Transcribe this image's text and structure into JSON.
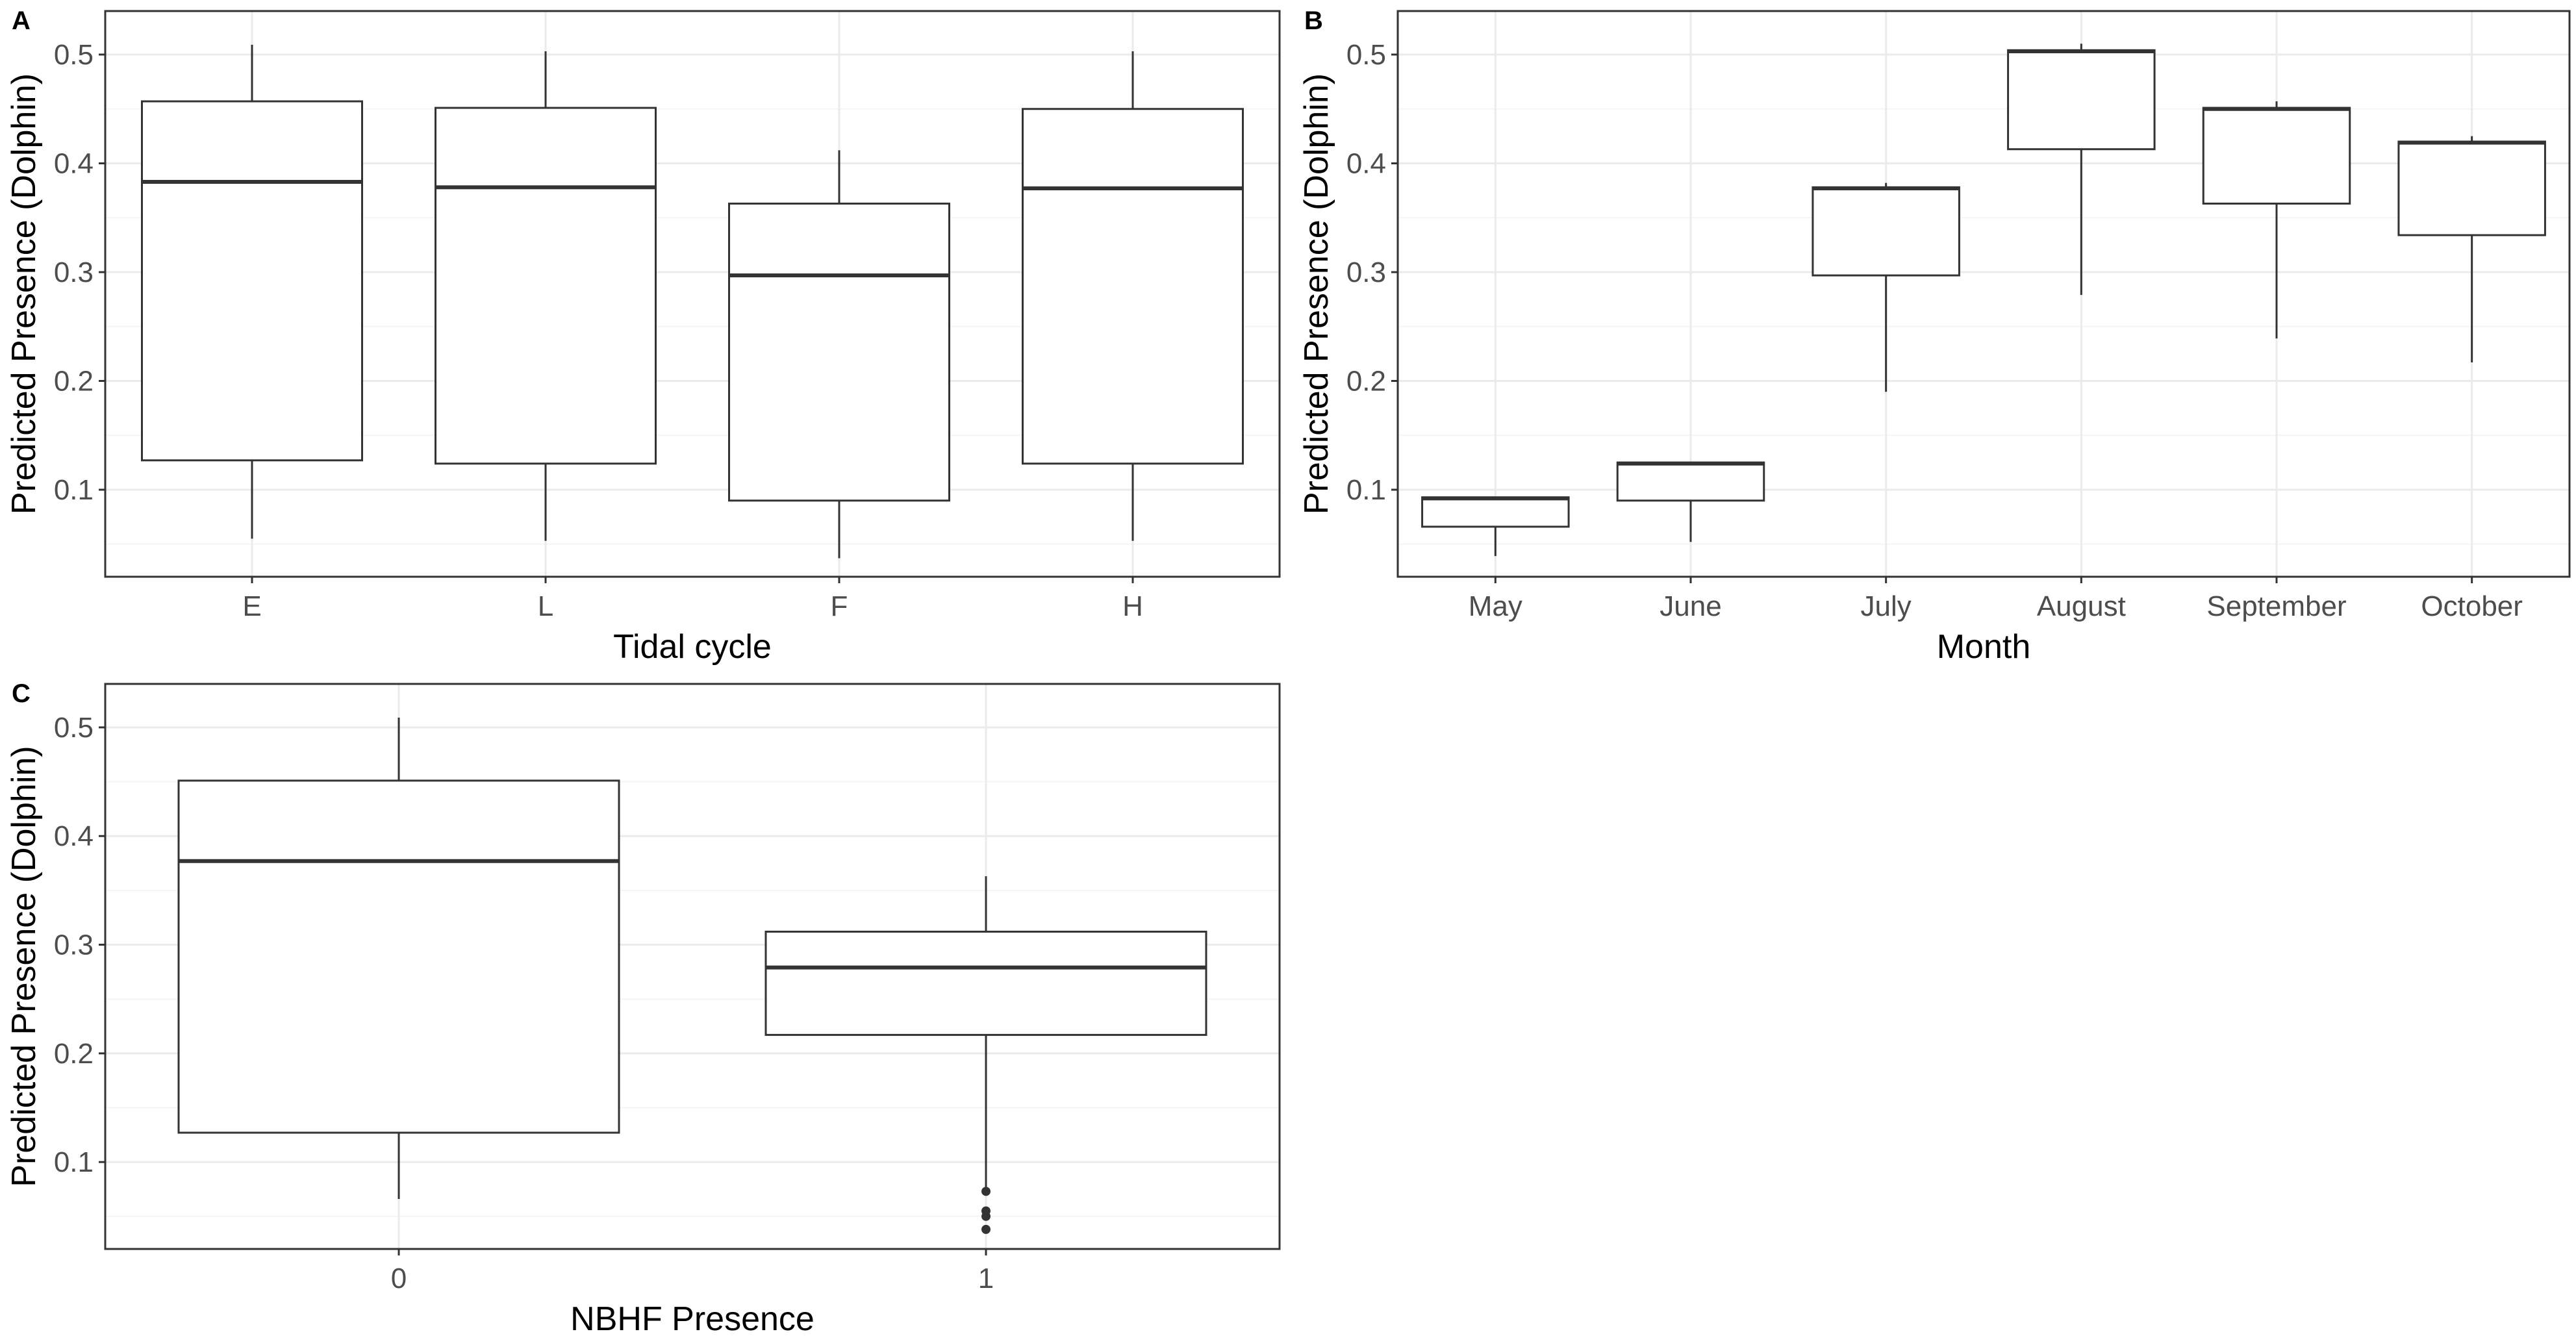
{
  "chart_data": [
    {
      "panel": "A",
      "type": "box",
      "xlabel": "Tidal cycle",
      "ylabel": "Predicted Presence (Dolphin)",
      "ylim": [
        0.02,
        0.54
      ],
      "yticks": [
        0.1,
        0.2,
        0.3,
        0.4,
        0.5
      ],
      "ytick_labels": [
        "0.1",
        "0.2",
        "0.3",
        "0.4",
        "0.5"
      ],
      "categories": [
        "E",
        "L",
        "F",
        "H"
      ],
      "boxes": [
        {
          "category": "E",
          "whisker_low": 0.055,
          "q1": 0.127,
          "median": 0.383,
          "q3": 0.457,
          "whisker_high": 0.509,
          "outliers": []
        },
        {
          "category": "L",
          "whisker_low": 0.053,
          "q1": 0.124,
          "median": 0.378,
          "q3": 0.451,
          "whisker_high": 0.503,
          "outliers": []
        },
        {
          "category": "F",
          "whisker_low": 0.037,
          "q1": 0.09,
          "median": 0.297,
          "q3": 0.363,
          "whisker_high": 0.412,
          "outliers": []
        },
        {
          "category": "H",
          "whisker_low": 0.053,
          "q1": 0.124,
          "median": 0.377,
          "q3": 0.45,
          "whisker_high": 0.503,
          "outliers": []
        }
      ],
      "grid": true
    },
    {
      "panel": "B",
      "type": "box",
      "xlabel": "Month",
      "ylabel": "Predicted Presence (Dolphin)",
      "ylim": [
        0.02,
        0.54
      ],
      "yticks": [
        0.1,
        0.2,
        0.3,
        0.4,
        0.5
      ],
      "ytick_labels": [
        "0.1",
        "0.2",
        "0.3",
        "0.4",
        "0.5"
      ],
      "categories": [
        "May",
        "June",
        "July",
        "August",
        "September",
        "October"
      ],
      "boxes": [
        {
          "category": "May",
          "whisker_low": 0.039,
          "q1": 0.066,
          "median": 0.092,
          "q3": 0.093,
          "whisker_high": 0.093,
          "outliers": []
        },
        {
          "category": "June",
          "whisker_low": 0.052,
          "q1": 0.09,
          "median": 0.124,
          "q3": 0.125,
          "whisker_high": 0.125,
          "outliers": []
        },
        {
          "category": "July",
          "whisker_low": 0.19,
          "q1": 0.297,
          "median": 0.377,
          "q3": 0.378,
          "whisker_high": 0.382,
          "outliers": []
        },
        {
          "category": "August",
          "whisker_low": 0.279,
          "q1": 0.413,
          "median": 0.503,
          "q3": 0.504,
          "whisker_high": 0.51,
          "outliers": []
        },
        {
          "category": "September",
          "whisker_low": 0.239,
          "q1": 0.363,
          "median": 0.45,
          "q3": 0.451,
          "whisker_high": 0.457,
          "outliers": []
        },
        {
          "category": "October",
          "whisker_low": 0.217,
          "q1": 0.334,
          "median": 0.419,
          "q3": 0.42,
          "whisker_high": 0.425,
          "outliers": []
        }
      ],
      "grid": true
    },
    {
      "panel": "C",
      "type": "box",
      "xlabel": "NBHF Presence",
      "ylabel": "Predicted Presence (Dolphin)",
      "ylim": [
        0.02,
        0.54
      ],
      "yticks": [
        0.1,
        0.2,
        0.3,
        0.4,
        0.5
      ],
      "ytick_labels": [
        "0.1",
        "0.2",
        "0.3",
        "0.4",
        "0.5"
      ],
      "categories": [
        "0",
        "1"
      ],
      "boxes": [
        {
          "category": "0",
          "whisker_low": 0.066,
          "q1": 0.127,
          "median": 0.377,
          "q3": 0.451,
          "whisker_high": 0.509,
          "outliers": []
        },
        {
          "category": "1",
          "whisker_low": 0.075,
          "q1": 0.217,
          "median": 0.279,
          "q3": 0.312,
          "whisker_high": 0.363,
          "outliers": [
            0.073,
            0.055,
            0.05,
            0.038
          ]
        }
      ],
      "grid": true
    }
  ],
  "colors": {
    "box_fill": "#ffffff",
    "box_stroke": "#333333",
    "median_stroke": "#333333",
    "panel_border": "#333333",
    "grid_major": "#ebebeb",
    "grid_minor": "#f5f5f5",
    "tick_text": "#4d4d4d",
    "title_text": "#000000"
  }
}
